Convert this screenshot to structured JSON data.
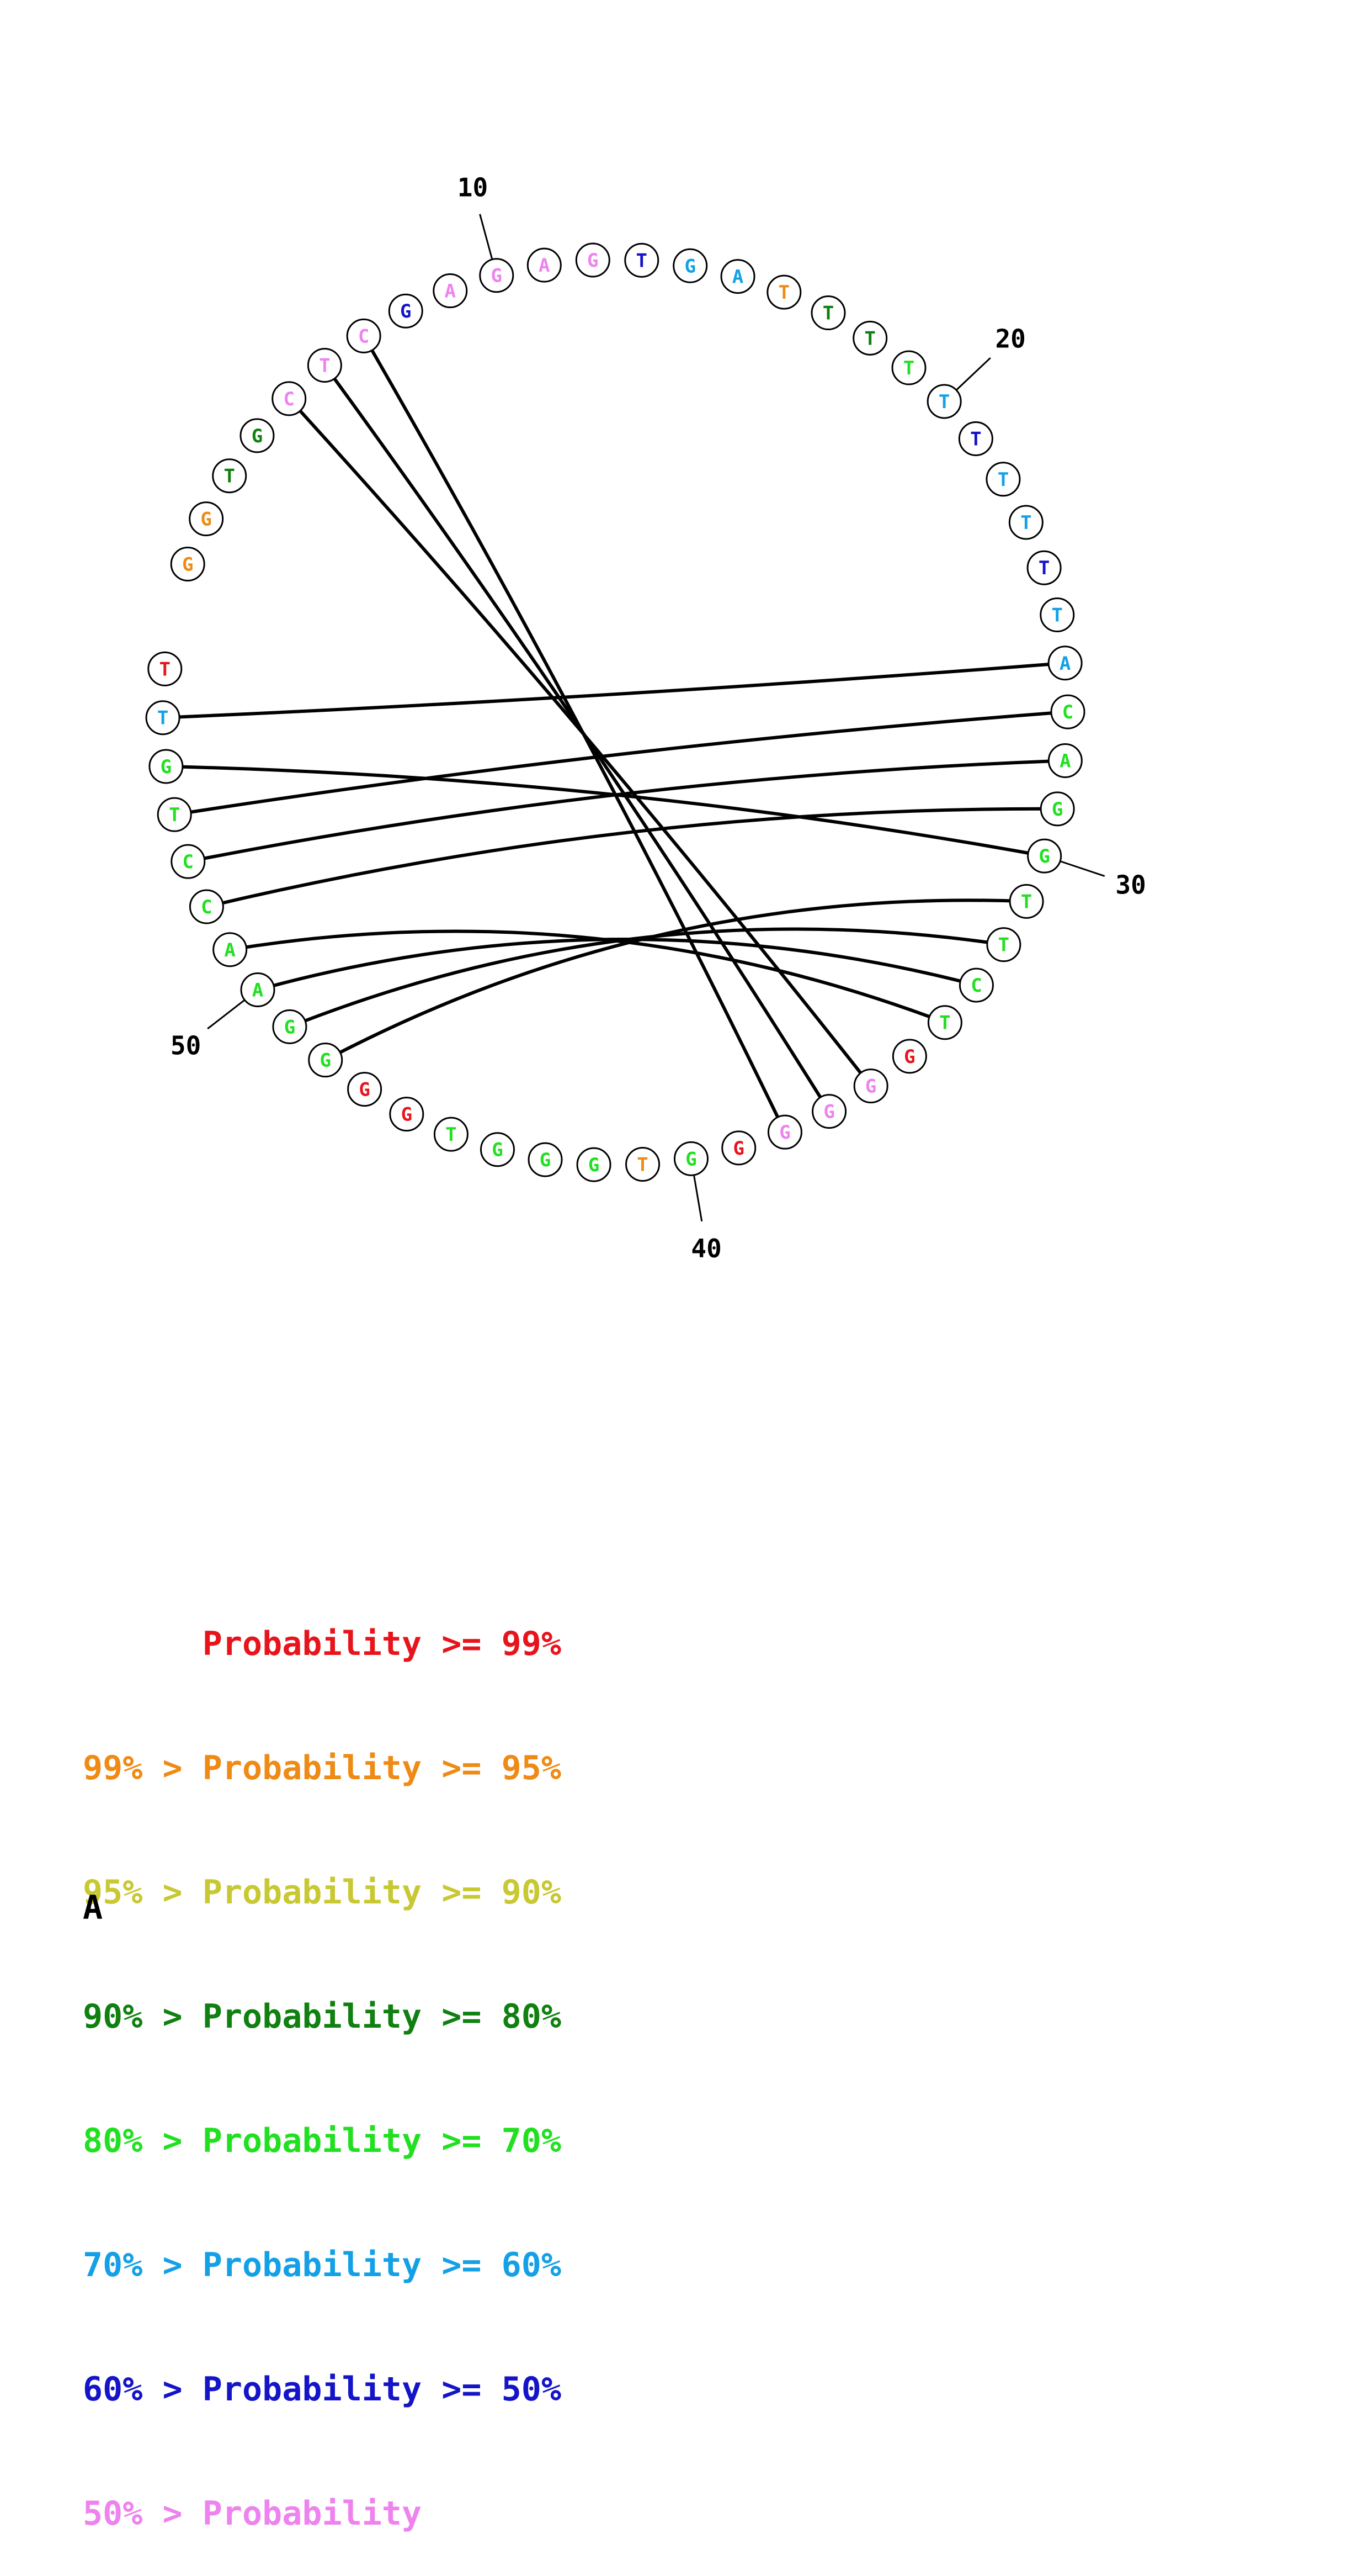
{
  "colors": {
    "red": "#e8141c",
    "orange": "#ef8a15",
    "yellow": "#c8c832",
    "darkgreen": "#108010",
    "green": "#20e020",
    "lightblue": "#14a0e6",
    "blue": "#1414c8",
    "pink": "#ee82ee"
  },
  "sequence": [
    {
      "n": 1,
      "base": "G",
      "color": "orange"
    },
    {
      "n": 2,
      "base": "G",
      "color": "orange"
    },
    {
      "n": 3,
      "base": "T",
      "color": "darkgreen"
    },
    {
      "n": 4,
      "base": "G",
      "color": "darkgreen"
    },
    {
      "n": 5,
      "base": "C",
      "color": "pink"
    },
    {
      "n": 6,
      "base": "T",
      "color": "pink"
    },
    {
      "n": 7,
      "base": "C",
      "color": "pink"
    },
    {
      "n": 8,
      "base": "G",
      "color": "blue"
    },
    {
      "n": 9,
      "base": "A",
      "color": "pink"
    },
    {
      "n": 10,
      "base": "G",
      "color": "pink"
    },
    {
      "n": 11,
      "base": "A",
      "color": "pink"
    },
    {
      "n": 12,
      "base": "G",
      "color": "pink"
    },
    {
      "n": 13,
      "base": "T",
      "color": "blue"
    },
    {
      "n": 14,
      "base": "G",
      "color": "lightblue"
    },
    {
      "n": 15,
      "base": "A",
      "color": "lightblue"
    },
    {
      "n": 16,
      "base": "T",
      "color": "orange"
    },
    {
      "n": 17,
      "base": "T",
      "color": "darkgreen"
    },
    {
      "n": 18,
      "base": "T",
      "color": "darkgreen"
    },
    {
      "n": 19,
      "base": "T",
      "color": "green"
    },
    {
      "n": 20,
      "base": "T",
      "color": "lightblue"
    },
    {
      "n": 21,
      "base": "T",
      "color": "blue"
    },
    {
      "n": 22,
      "base": "T",
      "color": "lightblue"
    },
    {
      "n": 23,
      "base": "T",
      "color": "lightblue"
    },
    {
      "n": 24,
      "base": "T",
      "color": "blue"
    },
    {
      "n": 25,
      "base": "T",
      "color": "lightblue"
    },
    {
      "n": 26,
      "base": "A",
      "color": "lightblue"
    },
    {
      "n": 27,
      "base": "C",
      "color": "green"
    },
    {
      "n": 28,
      "base": "A",
      "color": "green"
    },
    {
      "n": 29,
      "base": "G",
      "color": "green"
    },
    {
      "n": 30,
      "base": "G",
      "color": "green"
    },
    {
      "n": 31,
      "base": "T",
      "color": "green"
    },
    {
      "n": 32,
      "base": "T",
      "color": "green"
    },
    {
      "n": 33,
      "base": "C",
      "color": "green"
    },
    {
      "n": 34,
      "base": "T",
      "color": "green"
    },
    {
      "n": 35,
      "base": "G",
      "color": "red"
    },
    {
      "n": 36,
      "base": "G",
      "color": "pink"
    },
    {
      "n": 37,
      "base": "G",
      "color": "pink"
    },
    {
      "n": 38,
      "base": "G",
      "color": "pink"
    },
    {
      "n": 39,
      "base": "G",
      "color": "red"
    },
    {
      "n": 40,
      "base": "G",
      "color": "green"
    },
    {
      "n": 41,
      "base": "T",
      "color": "orange"
    },
    {
      "n": 42,
      "base": "G",
      "color": "green"
    },
    {
      "n": 43,
      "base": "G",
      "color": "green"
    },
    {
      "n": 44,
      "base": "G",
      "color": "green"
    },
    {
      "n": 45,
      "base": "T",
      "color": "green"
    },
    {
      "n": 46,
      "base": "G",
      "color": "red"
    },
    {
      "n": 47,
      "base": "G",
      "color": "red"
    },
    {
      "n": 48,
      "base": "G",
      "color": "green"
    },
    {
      "n": 49,
      "base": "G",
      "color": "green"
    },
    {
      "n": 50,
      "base": "A",
      "color": "green"
    },
    {
      "n": 51,
      "base": "A",
      "color": "green"
    },
    {
      "n": 52,
      "base": "C",
      "color": "green"
    },
    {
      "n": 53,
      "base": "C",
      "color": "green"
    },
    {
      "n": 54,
      "base": "T",
      "color": "green"
    },
    {
      "n": 55,
      "base": "G",
      "color": "green"
    },
    {
      "n": 56,
      "base": "T",
      "color": "lightblue"
    },
    {
      "n": 57,
      "base": "T",
      "color": "red"
    }
  ],
  "pairs": [
    [
      5,
      36
    ],
    [
      6,
      37
    ],
    [
      7,
      38
    ],
    [
      48,
      31
    ],
    [
      49,
      32
    ],
    [
      50,
      33
    ],
    [
      51,
      34
    ],
    [
      52,
      29
    ],
    [
      53,
      28
    ],
    [
      54,
      27
    ],
    [
      55,
      30
    ],
    [
      56,
      26
    ]
  ],
  "position_labels": [
    "10",
    "20",
    "30",
    "40",
    "50"
  ],
  "legend": [
    {
      "prefix": "",
      "text": "Probability >= 99%",
      "color": "red"
    },
    {
      "prefix": "99% > ",
      "text": "Probability >= 95%",
      "color": "orange"
    },
    {
      "prefix": "95% > ",
      "text": "Probability >= 90%",
      "color": "yellow"
    },
    {
      "prefix": "90% > ",
      "text": "Probability >= 80%",
      "color": "darkgreen"
    },
    {
      "prefix": "80% > ",
      "text": "Probability >= 70%",
      "color": "green"
    },
    {
      "prefix": "70% > ",
      "text": "Probability >= 60%",
      "color": "lightblue"
    },
    {
      "prefix": "60% > ",
      "text": "Probability >= 50%",
      "color": "blue"
    },
    {
      "prefix": "50% > ",
      "text": "Probability",
      "color": "pink"
    }
  ],
  "panel_label": "A"
}
